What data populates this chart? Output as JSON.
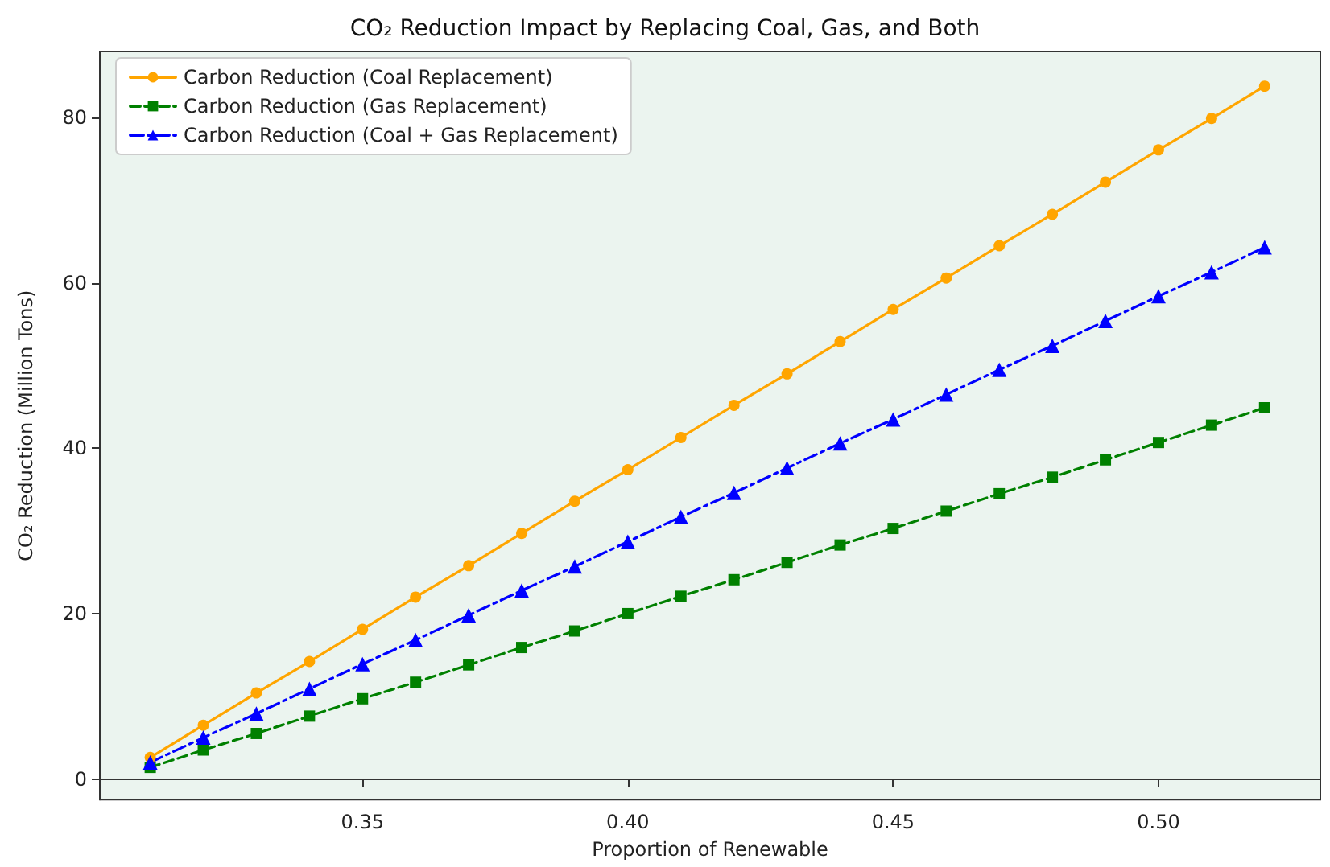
{
  "chart_data": {
    "type": "line",
    "title": "CO₂ Reduction Impact by Replacing Coal, Gas, and Both",
    "xlabel": "Proportion of Renewable",
    "ylabel": "CO₂ Reduction (Million Tons)",
    "x": [
      0.31,
      0.32,
      0.33,
      0.34,
      0.35,
      0.36,
      0.37,
      0.38,
      0.39,
      0.4,
      0.41,
      0.42,
      0.43,
      0.44,
      0.45,
      0.46,
      0.47,
      0.48,
      0.49,
      0.5,
      0.51,
      0.52
    ],
    "series": [
      {
        "name": "Carbon Reduction (Coal Replacement)",
        "color": "#ffa500",
        "marker": "circle",
        "line_style": "solid",
        "values": [
          2.6,
          6.5,
          10.4,
          14.2,
          18.1,
          22.0,
          25.8,
          29.7,
          33.6,
          37.4,
          41.3,
          45.2,
          49.0,
          52.9,
          56.8,
          60.6,
          64.5,
          68.3,
          72.2,
          76.1,
          79.9,
          83.8
        ]
      },
      {
        "name": "Carbon Reduction (Gas Replacement)",
        "color": "#008000",
        "marker": "square",
        "line_style": "dashed",
        "values": [
          1.4,
          3.5,
          5.5,
          7.6,
          9.7,
          11.7,
          13.8,
          15.9,
          17.9,
          20.0,
          22.1,
          24.1,
          26.2,
          28.3,
          30.3,
          32.4,
          34.5,
          36.5,
          38.6,
          40.7,
          42.8,
          44.9
        ]
      },
      {
        "name": "Carbon Reduction (Coal + Gas Replacement)",
        "color": "#0000ff",
        "marker": "triangle",
        "line_style": "dashdot",
        "values": [
          2.0,
          5.0,
          7.9,
          10.9,
          13.9,
          16.8,
          19.8,
          22.8,
          25.7,
          28.7,
          31.7,
          34.6,
          37.6,
          40.6,
          43.5,
          46.5,
          49.5,
          52.4,
          55.4,
          58.4,
          61.3,
          64.3
        ]
      }
    ],
    "xlim": [
      0.3005,
      0.5305
    ],
    "xticks": [
      0.35,
      {
        "value": 0.4,
        "label": "0.40"
      },
      0.45,
      {
        "value": 0.5,
        "label": "0.50"
      }
    ],
    "ylim": [
      -2.5,
      88
    ],
    "yticks": [
      0,
      20,
      40,
      60,
      80
    ],
    "legend": "top left"
  }
}
